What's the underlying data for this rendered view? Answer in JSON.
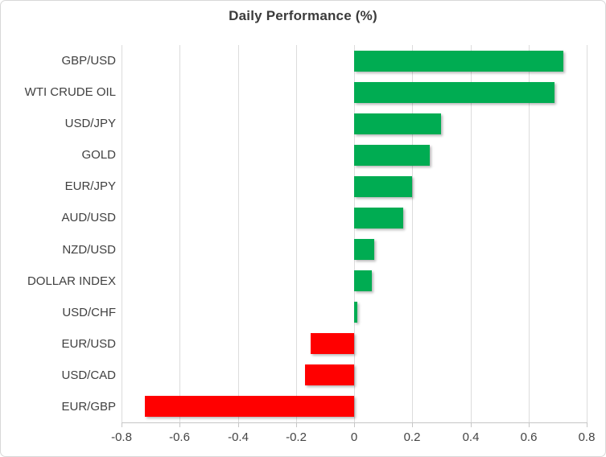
{
  "chart_data": {
    "type": "bar",
    "orientation": "horizontal",
    "title": "Daily Performance (%)",
    "categories": [
      "GBP/USD",
      "WTI CRUDE OIL",
      "USD/JPY",
      "GOLD",
      "EUR/JPY",
      "AUD/USD",
      "NZD/USD",
      "DOLLAR INDEX",
      "USD/CHF",
      "EUR/USD",
      "USD/CAD",
      "EUR/GBP"
    ],
    "values": [
      0.72,
      0.69,
      0.3,
      0.26,
      0.2,
      0.17,
      0.07,
      0.06,
      0.01,
      -0.15,
      -0.17,
      -0.72
    ],
    "xlim": [
      -0.8,
      0.8
    ],
    "xticks": [
      -0.8,
      -0.6,
      -0.4,
      -0.2,
      0,
      0.2,
      0.4,
      0.6,
      0.8
    ],
    "xtick_labels": [
      "-0.8",
      "-0.6",
      "-0.4",
      "-0.2",
      "0",
      "0.2",
      "0.4",
      "0.6",
      "0.8"
    ],
    "xlabel": "",
    "ylabel": "",
    "grid": true,
    "legend": false,
    "colors": {
      "positive": "#00ac52",
      "negative": "#ff0000"
    }
  }
}
